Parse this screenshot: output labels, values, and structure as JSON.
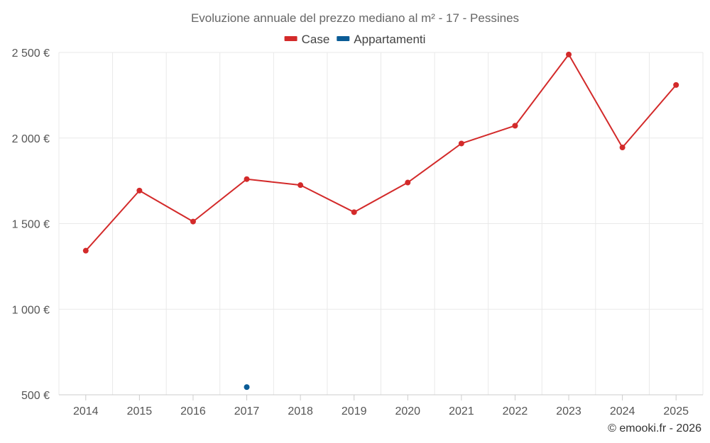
{
  "chart_data": {
    "type": "line",
    "title": "Evoluzione annuale del prezzo mediano al m² - 17 - Pessines",
    "categories": [
      "2014",
      "2015",
      "2016",
      "2017",
      "2018",
      "2019",
      "2020",
      "2021",
      "2022",
      "2023",
      "2024",
      "2025"
    ],
    "ylim": [
      500,
      2500
    ],
    "yticks": [
      500,
      1000,
      1500,
      2000,
      2500
    ],
    "ytick_labels": [
      "500 €",
      "1 000 €",
      "1 500 €",
      "2 000 €",
      "2 500 €"
    ],
    "grid": true,
    "legend_position": "top-center",
    "series": [
      {
        "name": "Case",
        "color": "#d32a2a",
        "values": [
          1342,
          1693,
          1512,
          1760,
          1725,
          1567,
          1740,
          1968,
          2072,
          2488,
          1945,
          2310
        ]
      },
      {
        "name": "Appartamenti",
        "color": "#0b5c96",
        "values": [
          null,
          null,
          null,
          545,
          null,
          null,
          null,
          null,
          null,
          null,
          null,
          null
        ]
      }
    ]
  },
  "credit": "© emooki.fr - 2026"
}
